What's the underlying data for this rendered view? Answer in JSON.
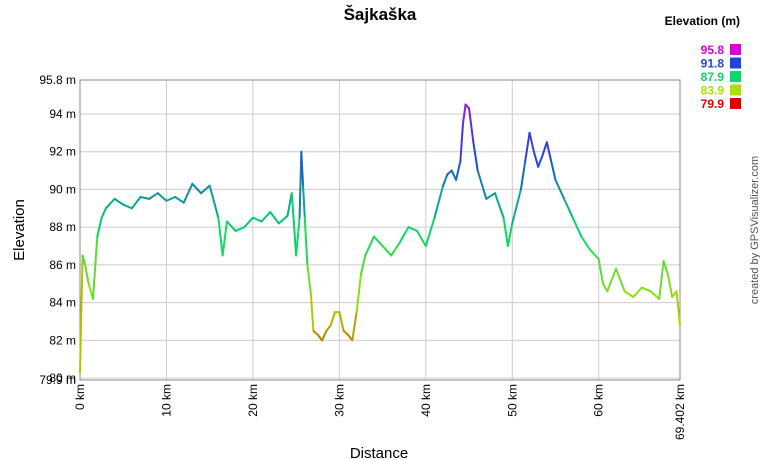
{
  "chart_data": {
    "type": "line",
    "title": "Šajkaška",
    "xlabel": "Distance",
    "ylabel": "Elevation",
    "xlim": [
      0,
      69.402
    ],
    "ylim": [
      79.9,
      95.8
    ],
    "x_ticks": [
      {
        "value": 0,
        "label": "0 km"
      },
      {
        "value": 10,
        "label": "10 km"
      },
      {
        "value": 20,
        "label": "20 km"
      },
      {
        "value": 30,
        "label": "30 km"
      },
      {
        "value": 40,
        "label": "40 km"
      },
      {
        "value": 50,
        "label": "50 km"
      },
      {
        "value": 60,
        "label": "60 km"
      },
      {
        "value": 69.402,
        "label": "69.402 km"
      }
    ],
    "y_ticks": [
      {
        "value": 79.9,
        "label": "79.9 m"
      },
      {
        "value": 80,
        "label": "80 m"
      },
      {
        "value": 82,
        "label": "82 m"
      },
      {
        "value": 84,
        "label": "84 m"
      },
      {
        "value": 86,
        "label": "86 m"
      },
      {
        "value": 88,
        "label": "88 m"
      },
      {
        "value": 90,
        "label": "90 m"
      },
      {
        "value": 92,
        "label": "92 m"
      },
      {
        "value": 94,
        "label": "94 m"
      },
      {
        "value": 95.8,
        "label": "95.8 m"
      }
    ],
    "grid": true,
    "legend": {
      "title": "Elevation (m)",
      "placement": "top-right",
      "entries": [
        {
          "label": "95.8",
          "color": "#d900d9"
        },
        {
          "label": "91.8",
          "color": "#1f45e0"
        },
        {
          "label": "87.9",
          "color": "#00d96b"
        },
        {
          "label": "83.9",
          "color": "#a8e000"
        },
        {
          "label": "79.9",
          "color": "#e00000"
        }
      ]
    },
    "credit": "created by GPSVisualizer.com",
    "series": [
      {
        "x": [
          0,
          0.3,
          0.6,
          1,
          1.5,
          2,
          2.5,
          3,
          4,
          5,
          6,
          7,
          8,
          9,
          10,
          11,
          12,
          13,
          14,
          15,
          16,
          16.5,
          17,
          18,
          19,
          20,
          21,
          22,
          23,
          24,
          24.5,
          25,
          25.4,
          25.6,
          25.8,
          26,
          26.3,
          26.7,
          27,
          27.5,
          28,
          28.5,
          29,
          29.5,
          30,
          30.5,
          31,
          31.5,
          32,
          32.5,
          33,
          34,
          35,
          36,
          37,
          38,
          39,
          40,
          41,
          42,
          42.5,
          43,
          43.5,
          44,
          44.3,
          44.6,
          45,
          45.5,
          46,
          47,
          48,
          49,
          49.5,
          50,
          51,
          51.5,
          52,
          52.5,
          53,
          53.5,
          54,
          54.5,
          55,
          56,
          57,
          58,
          59,
          60,
          60.5,
          61,
          62,
          63,
          64,
          65,
          66,
          67,
          67.5,
          68,
          68.5,
          69,
          69.402
        ],
        "y": [
          80.3,
          86.5,
          86,
          85,
          84.2,
          87.5,
          88.5,
          89,
          89.5,
          89.2,
          89,
          89.6,
          89.5,
          89.8,
          89.4,
          89.6,
          89.3,
          90.3,
          89.8,
          90.2,
          88.5,
          86.5,
          88.3,
          87.8,
          88,
          88.5,
          88.3,
          88.8,
          88.2,
          88.6,
          89.8,
          86.5,
          88.5,
          92,
          90.2,
          88.5,
          86,
          84.5,
          82.5,
          82.3,
          82,
          82.5,
          82.8,
          83.5,
          83.5,
          82.5,
          82.3,
          82,
          83.5,
          85.5,
          86.5,
          87.5,
          87,
          86.5,
          87.2,
          88,
          87.8,
          87,
          88.5,
          90.2,
          90.8,
          91,
          90.5,
          91.5,
          93.5,
          94.5,
          94.3,
          92.5,
          91,
          89.5,
          89.8,
          88.5,
          87,
          88.2,
          90,
          91.5,
          93,
          92,
          91.2,
          91.8,
          92.5,
          91.5,
          90.5,
          89.5,
          88.5,
          87.5,
          86.8,
          86.3,
          85,
          84.6,
          85.8,
          84.6,
          84.3,
          84.8,
          84.6,
          84.2,
          86.2,
          85.5,
          84.3,
          84.6,
          82.8
        ]
      }
    ]
  }
}
